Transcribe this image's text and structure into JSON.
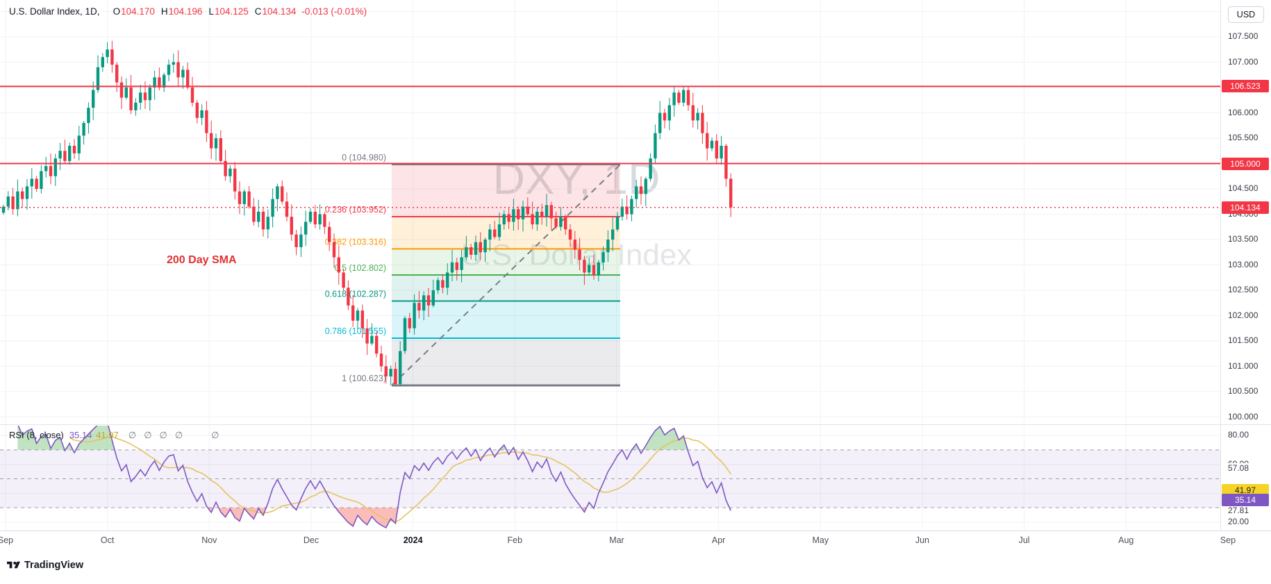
{
  "header": {
    "title": "U.S. Dollar Index, 1D,",
    "ohlc": [
      {
        "k": "O",
        "v": "104.170"
      },
      {
        "k": "H",
        "v": "104.196"
      },
      {
        "k": "L",
        "v": "104.125"
      },
      {
        "k": "C",
        "v": "104.134"
      }
    ],
    "change": "-0.013 (-0.01%)",
    "currency": "USD"
  },
  "annotations": {
    "sma": "200 Day SMA",
    "wm1": "DXY, 1D",
    "wm2": "U.S. Dollar Index"
  },
  "branding": {
    "name": "TradingView"
  },
  "chart_data": {
    "type": "candlestick",
    "symbol": "U.S. Dollar Index (DXY)",
    "interval": "1D",
    "title": "DXY, 1D",
    "ohlc_last": {
      "open": 104.17,
      "high": 104.196,
      "low": 104.125,
      "close": 104.134,
      "change": -0.013,
      "change_pct": "-0.01%"
    },
    "price_axis_range": [
      100.0,
      107.5
    ],
    "price_ticks": [
      "107.500",
      "107.000",
      "106.500",
      "106.000",
      "105.500",
      "105.000",
      "104.500",
      "104.000",
      "103.500",
      "103.000",
      "102.500",
      "102.000",
      "101.500",
      "101.000",
      "100.500",
      "100.000"
    ],
    "months": [
      "Sep",
      "Oct",
      "Nov",
      "Dec",
      "2024",
      "Feb",
      "Mar",
      "Apr",
      "May",
      "Jun",
      "Jul",
      "Aug",
      "Sep"
    ],
    "closes": [
      104.15,
      104.35,
      104.1,
      104.45,
      104.3,
      104.55,
      104.7,
      104.5,
      104.85,
      104.95,
      104.75,
      105.1,
      105.25,
      105.05,
      105.35,
      105.2,
      105.55,
      105.8,
      106.1,
      106.45,
      106.9,
      107.1,
      107.25,
      106.95,
      106.6,
      106.3,
      106.5,
      106.05,
      106.2,
      106.4,
      106.25,
      106.5,
      106.7,
      106.5,
      106.75,
      106.95,
      107.0,
      106.7,
      106.85,
      106.5,
      106.2,
      105.9,
      106.05,
      105.6,
      105.3,
      105.5,
      105.05,
      104.75,
      104.9,
      104.45,
      104.2,
      104.45,
      104.15,
      103.85,
      104.05,
      103.7,
      103.95,
      104.3,
      104.55,
      104.25,
      103.95,
      103.6,
      103.35,
      103.6,
      103.85,
      104.05,
      103.8,
      104.0,
      103.75,
      103.45,
      103.15,
      102.85,
      102.55,
      102.2,
      101.9,
      102.1,
      101.75,
      101.45,
      101.6,
      101.25,
      101.0,
      100.8,
      100.95,
      100.65,
      101.3,
      101.95,
      101.75,
      102.25,
      102.1,
      102.4,
      102.2,
      102.5,
      102.7,
      102.55,
      102.85,
      103.05,
      102.9,
      103.15,
      103.35,
      103.2,
      103.45,
      103.25,
      103.5,
      103.7,
      103.55,
      103.8,
      104.0,
      103.85,
      104.1,
      103.9,
      104.15,
      104.0,
      103.8,
      104.05,
      103.95,
      104.18,
      103.92,
      103.75,
      103.95,
      103.7,
      103.5,
      103.3,
      103.1,
      102.85,
      103.0,
      102.8,
      103.05,
      103.25,
      103.5,
      103.7,
      103.95,
      104.15,
      104.0,
      104.3,
      104.55,
      104.4,
      104.7,
      105.1,
      105.6,
      106.0,
      105.85,
      106.15,
      106.4,
      106.2,
      106.45,
      106.15,
      105.85,
      106.0,
      105.6,
      105.3,
      105.45,
      105.1,
      105.35,
      104.7,
      104.134
    ],
    "colors": {
      "up": "#089981",
      "down": "#f23645"
    },
    "horizontal_lines": [
      {
        "price": 106.523,
        "label": "106.523",
        "color": "#f23645"
      },
      {
        "price": 105.0,
        "label": "105.000",
        "color": "#f23645"
      }
    ],
    "last_price": {
      "value": 104.134,
      "label": "104.134"
    },
    "fib": {
      "box_x": [
        564,
        893
      ],
      "levels": [
        {
          "level": "0",
          "price": 104.98,
          "label": "0 (104.980)",
          "color": "#787b86"
        },
        {
          "level": "0.236",
          "price": 103.952,
          "label": "0.236 (103.952)",
          "color": "#f23645"
        },
        {
          "level": "0.382",
          "price": 103.316,
          "label": "0.382 (103.316)",
          "color": "#ff9800"
        },
        {
          "level": "0.5",
          "price": 102.802,
          "label": "0.5 (102.802)",
          "color": "#4caf50"
        },
        {
          "level": "0.618",
          "price": 102.287,
          "label": "0.618 (102.287)",
          "color": "#089981"
        },
        {
          "level": "0.786",
          "price": 101.555,
          "label": "0.786 (101.555)",
          "color": "#00bcd4"
        },
        {
          "level": "1",
          "price": 100.623,
          "label": "1 (100.623)",
          "color": "#787b86"
        }
      ],
      "band_fills": [
        "rgba(242,54,69,0.13)",
        "rgba(255,152,0,0.15)",
        "rgba(76,175,80,0.13)",
        "rgba(8,153,129,0.13)",
        "rgba(0,188,212,0.15)",
        "rgba(120,123,134,0.15)"
      ]
    }
  },
  "rsi": {
    "title": "RSI",
    "params": "(8, close)",
    "value": "35.14",
    "ma": "41.97",
    "nulls": [
      "∅",
      "∅",
      "∅",
      "∅",
      "∅"
    ],
    "period": 8,
    "upper": 70,
    "middle": 50,
    "lower": 30,
    "axis_range": [
      20,
      80
    ],
    "ticks": [
      {
        "label": "80.00",
        "value": 80
      },
      {
        "label": "60.00",
        "value": 60
      },
      {
        "label": "57.08",
        "value": 57.08,
        "white_bg": true
      },
      {
        "label": "27.81",
        "value": 27.81
      },
      {
        "label": "20.00",
        "value": 20
      }
    ],
    "colors": {
      "line": "#7E57C2",
      "ma": "#E6C35C",
      "badge_bg": "#7E57C2",
      "badge_fg": "#ffffff",
      "ma_badge_bg": "#F5D327",
      "ma_badge_fg": "#1b1b1b",
      "band_fill": "rgba(126,87,194,0.09)",
      "overbought_fill": "rgba(76,175,80,0.35)",
      "oversold_fill": "rgba(244,67,54,0.35)"
    }
  }
}
